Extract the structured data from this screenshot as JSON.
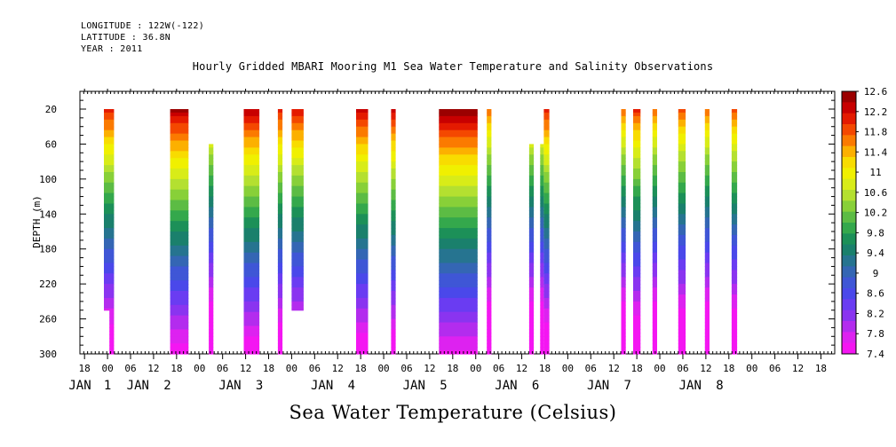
{
  "header": {
    "longitude": "LONGITUDE : 122W(-122)",
    "latitude": "LATITUDE : 36.8N",
    "year": "YEAR : 2011"
  },
  "chart_data": {
    "type": "heatmap",
    "title": "Hourly Gridded MBARI Mooring M1 Sea Water Temperature and Salinity Observations",
    "xlabel": "Sea Water Temperature (Celsius)",
    "ylabel": "DEPTH (m)",
    "y_reversed": true,
    "ylim": [
      0,
      300
    ],
    "y_ticks": [
      20,
      60,
      100,
      140,
      180,
      220,
      260,
      300
    ],
    "xlim": [
      -0.3,
      7.9
    ],
    "x_hour_ticks": [
      {
        "x": -0.25,
        "label": "18"
      },
      {
        "x": 0,
        "label": "00"
      },
      {
        "x": 0.25,
        "label": "06"
      },
      {
        "x": 0.5,
        "label": "12"
      },
      {
        "x": 0.75,
        "label": "18"
      },
      {
        "x": 1,
        "label": "00"
      },
      {
        "x": 1.25,
        "label": "06"
      },
      {
        "x": 1.5,
        "label": "12"
      },
      {
        "x": 1.75,
        "label": "18"
      },
      {
        "x": 2,
        "label": "00"
      },
      {
        "x": 2.25,
        "label": "06"
      },
      {
        "x": 2.5,
        "label": "12"
      },
      {
        "x": 2.75,
        "label": "18"
      },
      {
        "x": 3,
        "label": "00"
      },
      {
        "x": 3.25,
        "label": "06"
      },
      {
        "x": 3.5,
        "label": "12"
      },
      {
        "x": 3.75,
        "label": "18"
      },
      {
        "x": 4,
        "label": "00"
      },
      {
        "x": 4.25,
        "label": "06"
      },
      {
        "x": 4.5,
        "label": "12"
      },
      {
        "x": 4.75,
        "label": "18"
      },
      {
        "x": 5,
        "label": "00"
      },
      {
        "x": 5.25,
        "label": "06"
      },
      {
        "x": 5.5,
        "label": "12"
      },
      {
        "x": 5.75,
        "label": "18"
      },
      {
        "x": 6,
        "label": "00"
      },
      {
        "x": 6.25,
        "label": "06"
      },
      {
        "x": 6.5,
        "label": "12"
      },
      {
        "x": 6.75,
        "label": "18"
      },
      {
        "x": 7,
        "label": "00"
      },
      {
        "x": 7.25,
        "label": "06"
      },
      {
        "x": 7.5,
        "label": "12"
      },
      {
        "x": 7.75,
        "label": "18"
      }
    ],
    "x_day_labels": [
      {
        "x": -0.3,
        "label": "JAN"
      },
      {
        "x": 0,
        "label": "1"
      },
      {
        "x": 0.33,
        "label": "JAN"
      },
      {
        "x": 0.65,
        "label": "2"
      },
      {
        "x": 1.33,
        "label": "JAN"
      },
      {
        "x": 1.65,
        "label": "3"
      },
      {
        "x": 2.33,
        "label": "JAN"
      },
      {
        "x": 2.65,
        "label": "4"
      },
      {
        "x": 3.33,
        "label": "JAN"
      },
      {
        "x": 3.65,
        "label": "5"
      },
      {
        "x": 4.33,
        "label": "JAN"
      },
      {
        "x": 4.65,
        "label": "6"
      },
      {
        "x": 5.33,
        "label": "JAN"
      },
      {
        "x": 5.65,
        "label": "7"
      },
      {
        "x": 6.33,
        "label": "JAN"
      },
      {
        "x": 6.65,
        "label": "8"
      }
    ],
    "colorbar_labels": [
      "12.6",
      "12.2",
      "11.8",
      "11.4",
      "11",
      "10.6",
      "10.2",
      "9.8",
      "9.4",
      "9",
      "8.6",
      "8.2",
      "7.8",
      "7.4"
    ],
    "colorbar_colors": [
      "#9b0000",
      "#c80000",
      "#e41a00",
      "#f44800",
      "#fb7a00",
      "#fcb000",
      "#f8dc00",
      "#f0f000",
      "#d8ec18",
      "#b4e030",
      "#88d038",
      "#5cbc44",
      "#34a84c",
      "#1c9058",
      "#1a806c",
      "#267490",
      "#3466b4",
      "#3f56d6",
      "#4a48ea",
      "#6a3cf2",
      "#8a34f0",
      "#b32cee",
      "#dd22f0",
      "#f416f2"
    ],
    "segments": [
      {
        "x0": -0.04,
        "x1": 0.07,
        "top": 20,
        "bottom": 250,
        "warm": 0.0
      },
      {
        "x0": 0.02,
        "x1": 0.07,
        "top": 250,
        "bottom": 300,
        "warm": 0.0
      },
      {
        "x0": 0.68,
        "x1": 0.88,
        "top": 20,
        "bottom": 300,
        "warm": 0.25
      },
      {
        "x0": 1.1,
        "x1": 1.15,
        "top": 60,
        "bottom": 300,
        "warm": -0.3
      },
      {
        "x0": 1.48,
        "x1": 1.65,
        "top": 20,
        "bottom": 300,
        "warm": 0.2
      },
      {
        "x0": 1.85,
        "x1": 1.9,
        "top": 20,
        "bottom": 300,
        "warm": 0.0
      },
      {
        "x0": 2.0,
        "x1": 2.13,
        "top": 20,
        "bottom": 250,
        "warm": 0.05
      },
      {
        "x0": 2.7,
        "x1": 2.83,
        "top": 20,
        "bottom": 300,
        "warm": 0.15
      },
      {
        "x0": 3.08,
        "x1": 3.13,
        "top": 20,
        "bottom": 300,
        "warm": 0.1
      },
      {
        "x0": 3.6,
        "x1": 4.02,
        "top": 20,
        "bottom": 300,
        "warm": 0.35
      },
      {
        "x0": 4.12,
        "x1": 4.17,
        "top": 20,
        "bottom": 300,
        "warm": -0.3
      },
      {
        "x0": 4.58,
        "x1": 4.63,
        "top": 60,
        "bottom": 300,
        "warm": -0.3
      },
      {
        "x0": 4.7,
        "x1": 4.74,
        "top": 60,
        "bottom": 300,
        "warm": -0.3
      },
      {
        "x0": 4.74,
        "x1": 4.8,
        "top": 20,
        "bottom": 300,
        "warm": 0.0
      },
      {
        "x0": 5.58,
        "x1": 5.63,
        "top": 20,
        "bottom": 300,
        "warm": -0.3
      },
      {
        "x0": 5.71,
        "x1": 5.79,
        "top": 20,
        "bottom": 300,
        "warm": -0.1
      },
      {
        "x0": 5.92,
        "x1": 5.97,
        "top": 20,
        "bottom": 300,
        "warm": -0.3
      },
      {
        "x0": 6.2,
        "x1": 6.28,
        "top": 20,
        "bottom": 300,
        "warm": -0.2
      },
      {
        "x0": 6.49,
        "x1": 6.54,
        "top": 20,
        "bottom": 300,
        "warm": -0.3
      },
      {
        "x0": 6.78,
        "x1": 6.84,
        "top": 20,
        "bottom": 300,
        "warm": -0.2
      }
    ]
  }
}
